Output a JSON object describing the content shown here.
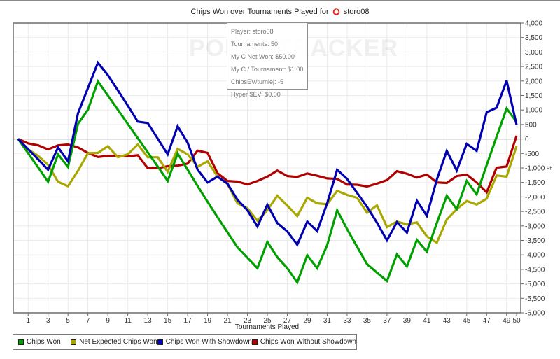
{
  "title": {
    "prefix": "Chips Won over Tournaments Played for",
    "player": "storo08",
    "logo_icon": "pokerstars-spade-icon"
  },
  "watermark": "POKERTRACKER",
  "tooltip": {
    "lines": [
      "Player: storo08",
      "Tournaments: 50",
      "My C Net Won: $50.00",
      "My C / Tournament: $1.00",
      "ChipsEV/turniej: -5",
      "Hyper $EV: $0.00"
    ]
  },
  "chart_data": {
    "type": "line",
    "title": "Chips Won over Tournaments Played for storo08",
    "xlabel": "Tournaments Played",
    "ylabel": "#",
    "xlim": [
      0,
      50
    ],
    "ylim": [
      -6000,
      4000
    ],
    "y_axis_position": "right",
    "grid": true,
    "legend_position": "bottom-left",
    "x_tick_labels": [
      "1",
      "3",
      "5",
      "7",
      "9",
      "11",
      "13",
      "15",
      "17",
      "19",
      "21",
      "23",
      "25",
      "27",
      "29",
      "31",
      "33",
      "35",
      "37",
      "39",
      "41",
      "43",
      "45",
      "47",
      "49",
      "50"
    ],
    "x_ticks": [
      1,
      3,
      5,
      7,
      9,
      11,
      13,
      15,
      17,
      19,
      21,
      23,
      25,
      27,
      29,
      31,
      33,
      35,
      37,
      39,
      41,
      43,
      45,
      47,
      49,
      50
    ],
    "y_tick_labels": [
      "4,000",
      "3,500",
      "3,000",
      "2,500",
      "2,000",
      "1,500",
      "1,000",
      "500",
      "0",
      "-500",
      "-1,000",
      "-1,500",
      "-2,000",
      "-2,500",
      "-3,000",
      "-3,500",
      "-4,000",
      "-4,500",
      "-5,000",
      "-5,500",
      "-6,000"
    ],
    "y_ticks": [
      4000,
      3500,
      3000,
      2500,
      2000,
      1500,
      1000,
      500,
      0,
      -500,
      -1000,
      -1500,
      -2000,
      -2500,
      -3000,
      -3500,
      -4000,
      -4500,
      -5000,
      -5500,
      -6000
    ],
    "x": [
      0,
      1,
      2,
      3,
      4,
      5,
      6,
      7,
      8,
      9,
      10,
      11,
      12,
      13,
      14,
      15,
      16,
      17,
      18,
      19,
      20,
      21,
      22,
      23,
      24,
      25,
      26,
      27,
      28,
      29,
      30,
      31,
      32,
      33,
      34,
      35,
      36,
      37,
      38,
      39,
      40,
      41,
      42,
      43,
      44,
      45,
      46,
      47,
      48,
      49,
      50
    ],
    "series": [
      {
        "name": "Chips Won",
        "color": "#00a000",
        "values": [
          0,
          -490,
          -980,
          -1475,
          -530,
          -965,
          520,
          1010,
          1990,
          1500,
          1010,
          520,
          30,
          -460,
          -950,
          -1450,
          -500,
          -1060,
          -1620,
          -2170,
          -2700,
          -3220,
          -3740,
          -4100,
          -4460,
          -3550,
          -4080,
          -4460,
          -4950,
          -4010,
          -4460,
          -3670,
          -2460,
          -3110,
          -3720,
          -4320,
          -4610,
          -4900,
          -3980,
          -4400,
          -3480,
          -3890,
          -2900,
          -1960,
          -2420,
          -1450,
          -1910,
          -900,
          80,
          1050,
          590
        ]
      },
      {
        "name": "Net Expected Chips Won",
        "color": "#a8a800",
        "values": [
          0,
          -360,
          -580,
          -890,
          -1480,
          -1630,
          -1100,
          -490,
          -480,
          -250,
          -630,
          -530,
          -190,
          -630,
          -630,
          -1130,
          -340,
          -530,
          -960,
          -770,
          -1300,
          -1550,
          -2220,
          -2390,
          -2820,
          -2460,
          -1960,
          -2300,
          -2660,
          -2030,
          -2220,
          -2250,
          -1790,
          -1930,
          -2030,
          -2540,
          -2290,
          -3040,
          -2850,
          -2950,
          -2880,
          -3360,
          -3580,
          -2780,
          -2420,
          -2140,
          -2260,
          -2060,
          -1260,
          -1300,
          -250
        ]
      },
      {
        "name": "Chips Won With Showdown",
        "color": "#0000b0",
        "values": [
          0,
          -350,
          -700,
          -1060,
          -290,
          -770,
          880,
          1760,
          2630,
          2200,
          1680,
          1150,
          600,
          550,
          10,
          -530,
          440,
          -130,
          -1060,
          -1500,
          -1300,
          -1540,
          -2100,
          -2460,
          -3020,
          -2270,
          -2900,
          -3190,
          -3650,
          -2850,
          -3180,
          -2220,
          -1060,
          -1380,
          -1860,
          -2340,
          -2890,
          -3500,
          -2870,
          -3230,
          -2130,
          -2650,
          -1400,
          -410,
          -1090,
          -170,
          -410,
          920,
          1080,
          2010,
          490
        ]
      },
      {
        "name": "Chips Won Without Showdown",
        "color": "#b00000",
        "values": [
          0,
          -150,
          -220,
          -360,
          -220,
          -190,
          -290,
          -480,
          -620,
          -580,
          -580,
          -600,
          -560,
          -1010,
          -1010,
          -940,
          -920,
          -850,
          -400,
          -480,
          -1180,
          -1450,
          -1470,
          -1570,
          -1450,
          -1300,
          -1090,
          -1280,
          -1310,
          -1190,
          -1270,
          -1360,
          -1380,
          -1570,
          -1580,
          -1640,
          -1540,
          -1420,
          -1110,
          -1200,
          -1330,
          -1230,
          -1500,
          -1520,
          -1280,
          -1230,
          -1500,
          -1840,
          -990,
          -950,
          110
        ]
      }
    ]
  }
}
